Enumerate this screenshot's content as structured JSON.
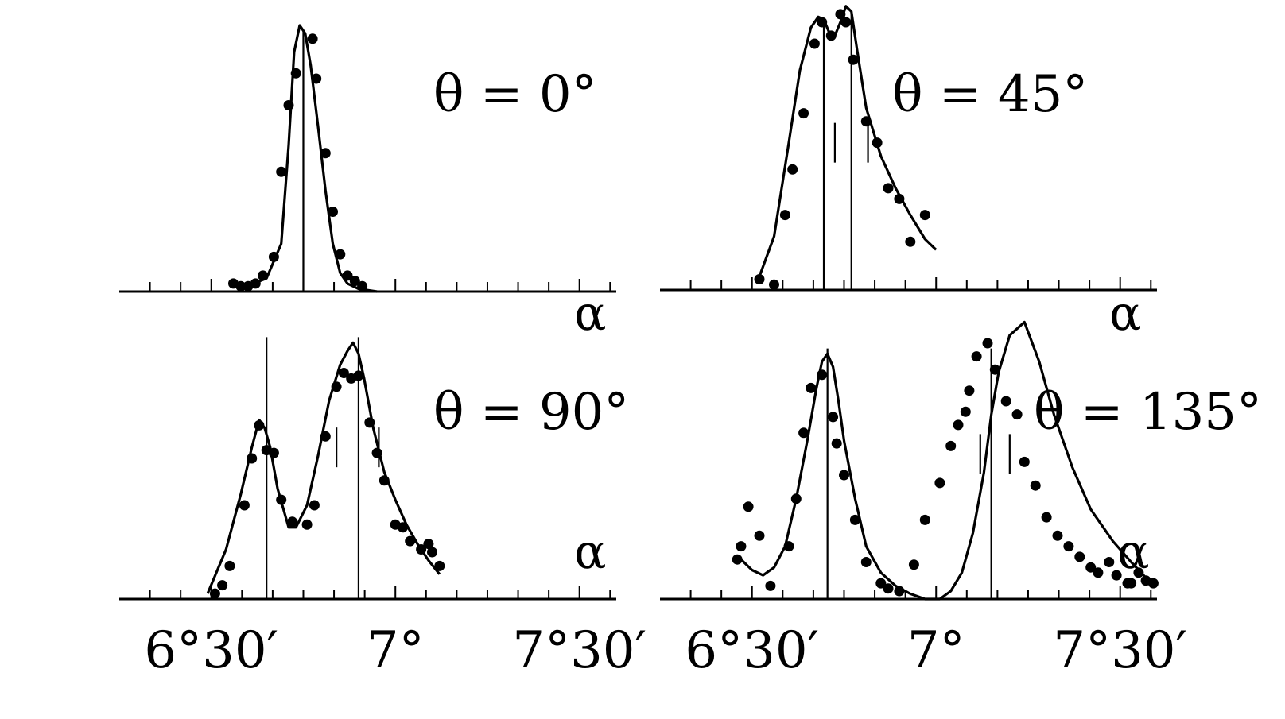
{
  "figure": {
    "title": ""
  },
  "chart_data": [
    {
      "type": "line",
      "panel_label": "θ = 0°",
      "xlabel": "α",
      "xlim": [
        6.25,
        7.6
      ],
      "ylim": [
        0,
        1
      ],
      "x_tick_values": [
        6.5,
        7.0,
        7.5
      ],
      "x_tick_labels": [],
      "vlines": [
        6.75
      ],
      "short_marks": [],
      "curve": {
        "x": [
          6.58,
          6.65,
          6.69,
          6.71,
          6.725,
          6.74,
          6.755,
          6.77,
          6.79,
          6.81,
          6.83,
          6.85,
          6.87,
          6.9,
          6.95
        ],
        "y": [
          0.01,
          0.05,
          0.18,
          0.55,
          0.9,
          1.0,
          0.97,
          0.85,
          0.62,
          0.38,
          0.18,
          0.07,
          0.03,
          0.01,
          0.0
        ]
      },
      "points": {
        "x": [
          6.56,
          6.58,
          6.6,
          6.62,
          6.64,
          6.67,
          6.69,
          6.71,
          6.73,
          6.775,
          6.785,
          6.81,
          6.83,
          6.85,
          6.87,
          6.89,
          6.91
        ],
        "y": [
          0.03,
          0.02,
          0.02,
          0.03,
          0.06,
          0.13,
          0.45,
          0.7,
          0.82,
          0.95,
          0.8,
          0.52,
          0.3,
          0.14,
          0.06,
          0.04,
          0.02
        ]
      }
    },
    {
      "type": "line",
      "panel_label": "θ = 45°",
      "xlabel": "α",
      "xlim": [
        6.25,
        7.6
      ],
      "ylim": [
        0,
        1
      ],
      "x_tick_values": [
        6.5,
        7.0,
        7.5
      ],
      "x_tick_labels": [],
      "vlines": [
        6.695,
        6.77
      ],
      "short_marks": [
        6.725,
        6.815
      ],
      "curve": {
        "x": [
          6.52,
          6.56,
          6.6,
          6.63,
          6.66,
          6.68,
          6.695,
          6.71,
          6.725,
          6.74,
          6.755,
          6.77,
          6.785,
          6.81,
          6.85,
          6.89,
          6.93,
          6.97,
          7.0
        ],
        "y": [
          0.05,
          0.2,
          0.55,
          0.82,
          0.98,
          1.02,
          1.01,
          0.96,
          0.95,
          1.0,
          1.06,
          1.04,
          0.9,
          0.68,
          0.5,
          0.38,
          0.28,
          0.19,
          0.15
        ]
      },
      "points": {
        "x": [
          6.52,
          6.56,
          6.59,
          6.61,
          6.64,
          6.67,
          6.69,
          6.715,
          6.74,
          6.755,
          6.775,
          6.81,
          6.84,
          6.87,
          6.9,
          6.93,
          6.97
        ],
        "y": [
          0.04,
          0.02,
          0.28,
          0.45,
          0.66,
          0.92,
          1.0,
          0.95,
          1.03,
          1.0,
          0.86,
          0.63,
          0.55,
          0.38,
          0.34,
          0.18,
          0.28
        ]
      }
    },
    {
      "type": "line",
      "panel_label": "θ = 90°",
      "xlabel": "α",
      "xlim": [
        6.25,
        7.6
      ],
      "ylim": [
        0,
        1
      ],
      "x_tick_values": [
        6.5,
        7.0,
        7.5
      ],
      "x_tick_labels": [
        "6°30′",
        "7°",
        "7°30′"
      ],
      "vlines": [
        6.65,
        6.9
      ],
      "short_marks": [
        6.84,
        6.955
      ],
      "curve": {
        "x": [
          6.49,
          6.54,
          6.58,
          6.61,
          6.63,
          6.645,
          6.66,
          6.68,
          6.71,
          6.73,
          6.76,
          6.79,
          6.82,
          6.85,
          6.87,
          6.885,
          6.9,
          6.915,
          6.94,
          6.97,
          7.0,
          7.03,
          7.06,
          7.09,
          7.12
        ],
        "y": [
          0.02,
          0.18,
          0.38,
          0.55,
          0.65,
          0.62,
          0.55,
          0.4,
          0.26,
          0.26,
          0.34,
          0.52,
          0.72,
          0.85,
          0.9,
          0.93,
          0.89,
          0.8,
          0.62,
          0.46,
          0.36,
          0.27,
          0.2,
          0.14,
          0.09
        ]
      },
      "points": {
        "x": [
          6.51,
          6.53,
          6.55,
          6.59,
          6.61,
          6.63,
          6.65,
          6.67,
          6.69,
          6.72,
          6.76,
          6.78,
          6.81,
          6.84,
          6.86,
          6.88,
          6.9,
          6.93,
          6.95,
          6.97,
          7.0,
          7.02,
          7.04,
          7.07,
          7.09,
          7.1,
          7.12
        ],
        "y": [
          0.02,
          0.05,
          0.12,
          0.34,
          0.51,
          0.63,
          0.54,
          0.53,
          0.36,
          0.28,
          0.27,
          0.34,
          0.59,
          0.77,
          0.82,
          0.8,
          0.81,
          0.64,
          0.53,
          0.43,
          0.27,
          0.26,
          0.21,
          0.18,
          0.2,
          0.17,
          0.12
        ]
      }
    },
    {
      "type": "line",
      "panel_label": "θ = 135°",
      "xlabel": "α",
      "xlim": [
        6.25,
        7.6
      ],
      "ylim": [
        0,
        1
      ],
      "x_tick_values": [
        6.5,
        7.0,
        7.5
      ],
      "x_tick_labels": [
        "6°30′",
        "7°",
        "7°30′"
      ],
      "vlines": [
        6.705,
        7.15
      ],
      "short_marks": [
        7.12,
        7.2
      ],
      "curve": {
        "x": [
          6.47,
          6.5,
          6.53,
          6.56,
          6.59,
          6.62,
          6.65,
          6.675,
          6.69,
          6.705,
          6.72,
          6.735,
          6.75,
          6.78,
          6.81,
          6.85,
          6.89,
          6.93,
          6.97,
          7.01,
          7.04,
          7.07,
          7.1,
          7.13,
          7.15,
          7.17,
          7.2,
          7.24,
          7.28,
          7.32,
          7.37,
          7.42,
          7.48,
          7.53,
          7.57
        ],
        "y": [
          0.15,
          0.11,
          0.09,
          0.12,
          0.2,
          0.38,
          0.6,
          0.8,
          0.9,
          0.93,
          0.88,
          0.75,
          0.6,
          0.38,
          0.2,
          0.1,
          0.05,
          0.02,
          0.0,
          0.0,
          0.03,
          0.1,
          0.25,
          0.48,
          0.7,
          0.86,
          1.0,
          1.05,
          0.9,
          0.7,
          0.5,
          0.34,
          0.22,
          0.14,
          0.08
        ]
      },
      "points": {
        "x": [
          6.46,
          6.47,
          6.49,
          6.52,
          6.55,
          6.6,
          6.62,
          6.64,
          6.66,
          6.69,
          6.72,
          6.73,
          6.75,
          6.78,
          6.81,
          6.85,
          6.87,
          6.9,
          6.94,
          6.97,
          7.01,
          7.04,
          7.06,
          7.08,
          7.09,
          7.11,
          7.14,
          7.16,
          7.19,
          7.22,
          7.24,
          7.27,
          7.3,
          7.33,
          7.36,
          7.39,
          7.42,
          7.44,
          7.47,
          7.49,
          7.52,
          7.53,
          7.55,
          7.57,
          7.59
        ],
        "y": [
          0.15,
          0.2,
          0.35,
          0.24,
          0.05,
          0.2,
          0.38,
          0.63,
          0.8,
          0.85,
          0.69,
          0.59,
          0.47,
          0.3,
          0.14,
          0.06,
          0.04,
          0.03,
          0.13,
          0.3,
          0.44,
          0.58,
          0.66,
          0.71,
          0.79,
          0.92,
          0.97,
          0.87,
          0.75,
          0.7,
          0.52,
          0.43,
          0.31,
          0.24,
          0.2,
          0.16,
          0.12,
          0.1,
          0.14,
          0.09,
          0.06,
          0.06,
          0.1,
          0.07,
          0.06
        ]
      }
    }
  ]
}
